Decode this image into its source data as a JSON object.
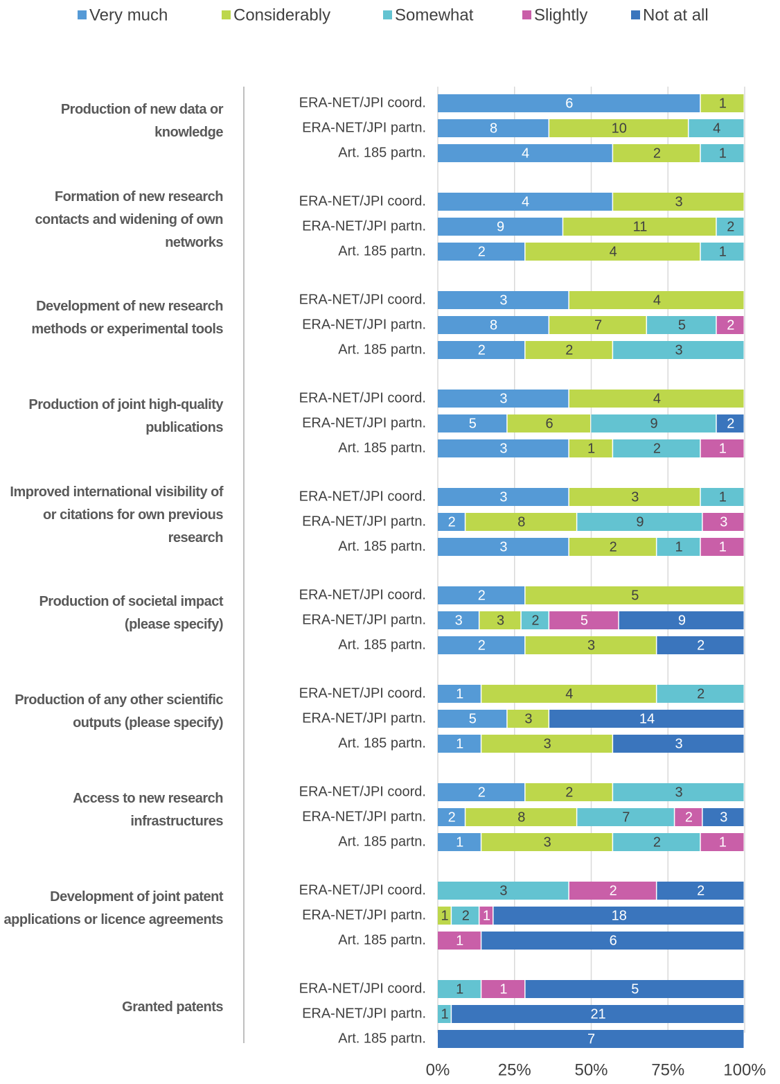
{
  "chart_data": {
    "type": "stacked_bar_100",
    "groups": [
      "Production of new data or knowledge",
      "Formation of new research contacts and widening of own networks",
      "Development of new research methods or experimental tools",
      "Production of joint high-quality publications",
      "Improved international visibility of or citations for own previous research",
      "Production of societal impact (please specify)",
      "Production of any other scientific outputs (please specify)",
      "Access to new research infrastructures",
      "Development of joint patent applications or licence agreements",
      "Granted patents"
    ],
    "categories": [
      "ERA-NET/JPI coord.",
      "ERA-NET/JPI partn.",
      "Art. 185 partn.",
      "ERA-NET/JPI coord.",
      "ERA-NET/JPI partn.",
      "Art. 185 partn.",
      "ERA-NET/JPI coord.",
      "ERA-NET/JPI partn.",
      "Art. 185 partn.",
      "ERA-NET/JPI coord.",
      "ERA-NET/JPI partn.",
      "Art. 185 partn.",
      "ERA-NET/JPI coord.",
      "ERA-NET/JPI partn.",
      "Art. 185 partn.",
      "ERA-NET/JPI coord.",
      "ERA-NET/JPI partn.",
      "Art. 185 partn.",
      "ERA-NET/JPI coord.",
      "ERA-NET/JPI partn.",
      "Art. 185 partn.",
      "ERA-NET/JPI coord.",
      "ERA-NET/JPI partn.",
      "Art. 185 partn.",
      "ERA-NET/JPI coord.",
      "ERA-NET/JPI partn.",
      "Art. 185 partn.",
      "ERA-NET/JPI coord.",
      "ERA-NET/JPI partn.",
      "Art. 185 partn."
    ],
    "series": [
      {
        "name": "Very much",
        "color": "#559ad6",
        "label_color": "#ffffff",
        "values": [
          6,
          8,
          4,
          4,
          9,
          2,
          3,
          8,
          2,
          3,
          5,
          3,
          3,
          2,
          3,
          2,
          3,
          2,
          1,
          5,
          1,
          2,
          2,
          1,
          null,
          null,
          null,
          null,
          null,
          null
        ]
      },
      {
        "name": "Considerably",
        "color": "#bdd74b",
        "label_color": "#404040",
        "values": [
          1,
          10,
          2,
          3,
          11,
          4,
          4,
          7,
          2,
          4,
          6,
          1,
          3,
          8,
          2,
          5,
          3,
          3,
          4,
          3,
          3,
          2,
          8,
          3,
          null,
          1,
          null,
          null,
          null,
          null
        ]
      },
      {
        "name": "Somewhat",
        "color": "#63c3d1",
        "label_color": "#404040",
        "values": [
          null,
          4,
          1,
          null,
          2,
          1,
          null,
          5,
          3,
          null,
          9,
          2,
          1,
          9,
          1,
          null,
          2,
          null,
          2,
          null,
          null,
          3,
          7,
          2,
          3,
          2,
          null,
          1,
          1,
          null
        ]
      },
      {
        "name": "Slightly",
        "color": "#c95fa8",
        "label_color": "#ffffff",
        "values": [
          null,
          null,
          null,
          null,
          null,
          null,
          null,
          2,
          null,
          null,
          null,
          1,
          null,
          3,
          1,
          null,
          5,
          null,
          null,
          null,
          null,
          null,
          2,
          1,
          2,
          1,
          1,
          1,
          null,
          null
        ]
      },
      {
        "name": "Not at all",
        "color": "#3a75bd",
        "label_color": "#ffffff",
        "values": [
          null,
          null,
          null,
          null,
          null,
          null,
          null,
          null,
          null,
          null,
          2,
          null,
          null,
          null,
          null,
          null,
          9,
          2,
          null,
          14,
          3,
          null,
          3,
          null,
          2,
          18,
          6,
          5,
          21,
          7
        ]
      }
    ],
    "xlim": [
      0,
      100
    ],
    "xticks": [
      {
        "value": 0,
        "label": "0%"
      },
      {
        "value": 25,
        "label": "25%"
      },
      {
        "value": 50,
        "label": "50%"
      },
      {
        "value": 75,
        "label": "75%"
      },
      {
        "value": 100,
        "label": "100%"
      }
    ],
    "grid": true,
    "legend": "top"
  }
}
